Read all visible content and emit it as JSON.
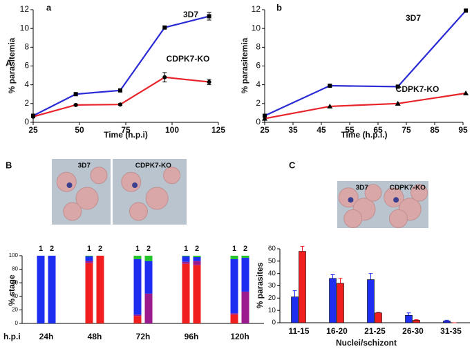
{
  "chart_data": [
    {
      "type": "line",
      "figure_label": "A",
      "panel": "a",
      "xlabel": "Time (h.p.i)",
      "ylabel": "% parasitemia",
      "xlim": [
        25,
        125
      ],
      "xticks": [
        25,
        50,
        75,
        100,
        125
      ],
      "ylim": [
        0,
        12
      ],
      "yticks": [
        0,
        2,
        4,
        6,
        8,
        10,
        12
      ],
      "series": [
        {
          "name": "3D7",
          "color": "#2b2bd6",
          "marker": "square",
          "x": [
            25,
            48,
            72,
            96,
            120
          ],
          "values": [
            0.7,
            3.0,
            3.4,
            10.1,
            11.3
          ],
          "errors": [
            0.1,
            0.15,
            0.15,
            0.15,
            0.4
          ]
        },
        {
          "name": "CDPK7-KO",
          "color": "#e8232a",
          "marker": "circle",
          "x": [
            25,
            48,
            72,
            96,
            120
          ],
          "values": [
            0.6,
            1.85,
            1.9,
            4.8,
            4.3
          ],
          "errors": [
            0.1,
            0.1,
            0.1,
            0.5,
            0.3
          ]
        }
      ]
    },
    {
      "type": "line",
      "panel": "b",
      "xlabel": "Time (h.p.i.)",
      "ylabel": "% parasitemia",
      "xlim": [
        25,
        95
      ],
      "xticks": [
        25,
        35,
        45,
        55,
        65,
        75,
        85,
        95
      ],
      "ylim": [
        0,
        12
      ],
      "yticks": [
        0,
        2,
        4,
        6,
        8,
        10,
        12
      ],
      "series": [
        {
          "name": "3D7",
          "color": "#2b2bd6",
          "marker": "square",
          "x": [
            25,
            48,
            72,
            96
          ],
          "values": [
            0.7,
            3.9,
            3.8,
            11.9
          ]
        },
        {
          "name": "CDPK7-KO",
          "color": "#e8232a",
          "marker": "triangle",
          "x": [
            25,
            48,
            72,
            96
          ],
          "values": [
            0.4,
            1.7,
            2.0,
            3.1
          ]
        }
      ]
    },
    {
      "type": "stacked_bar",
      "panel": "B",
      "image_labels": [
        "3D7",
        "CDPK7-KO"
      ],
      "ylabel": "% stage",
      "xlabel": "h.p.i",
      "groups": [
        "24h",
        "48h",
        "72h",
        "96h",
        "120h"
      ],
      "categories": [
        "1",
        "2",
        "1",
        "2",
        "1",
        "2",
        "1",
        "2",
        "1",
        "2"
      ],
      "ylim": [
        0,
        100
      ],
      "yticks": [
        0,
        20,
        40,
        60,
        80,
        100
      ],
      "series": [
        {
          "color": "#f01e1e",
          "values": [
            0,
            0,
            89,
            100,
            11,
            0,
            88,
            86,
            13,
            0
          ]
        },
        {
          "color": "#9b1a8e",
          "values": [
            0,
            0,
            3,
            0,
            2,
            44,
            3,
            6,
            2,
            47
          ]
        },
        {
          "color": "#1e2ef0",
          "values": [
            100,
            100,
            7,
            0,
            82,
            48,
            8,
            6,
            80,
            50
          ]
        },
        {
          "color": "#22c22a",
          "values": [
            0,
            0,
            1,
            0,
            5,
            8,
            1,
            2,
            5,
            3
          ]
        }
      ]
    },
    {
      "type": "bar",
      "panel": "C",
      "image_labels": [
        "3D7",
        "CDPK7-KO"
      ],
      "ylabel": "% parasites",
      "xlabel": "Nuclei/schizont",
      "categories": [
        "11-15",
        "16-20",
        "21-25",
        "26-30",
        "31-35"
      ],
      "ylim": [
        0,
        60
      ],
      "yticks": [
        0,
        10,
        20,
        30,
        40,
        50,
        60
      ],
      "series": [
        {
          "color": "#1e2ef0",
          "values": [
            21,
            36,
            35,
            6,
            1.5
          ],
          "errors": [
            5,
            3,
            5,
            2,
            0.5
          ]
        },
        {
          "color": "#f01e1e",
          "values": [
            58,
            32,
            8,
            2,
            0
          ],
          "errors": [
            4,
            4,
            0.5,
            0.5,
            0
          ]
        }
      ]
    }
  ]
}
